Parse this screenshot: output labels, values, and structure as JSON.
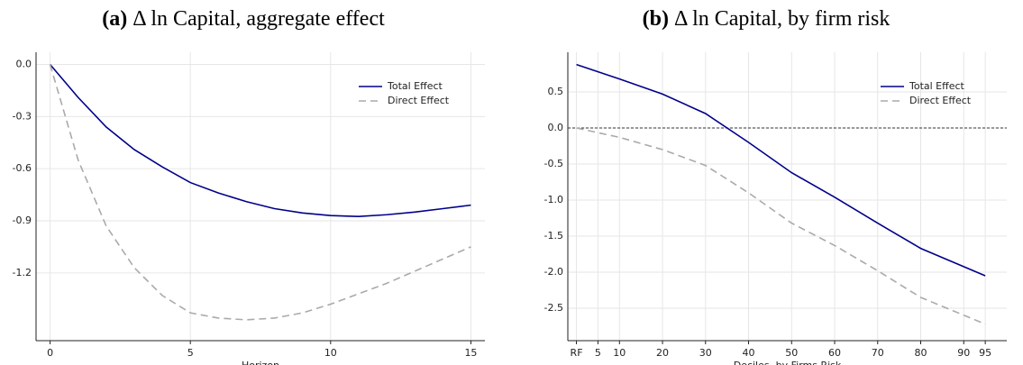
{
  "chart_data": [
    {
      "type": "line",
      "panel": "(a)",
      "title": "Δ ln Capital, aggregate effect",
      "x_label": "Horizon",
      "x": [
        0,
        1,
        2,
        3,
        4,
        5,
        6,
        7,
        8,
        9,
        10,
        11,
        12,
        13,
        14,
        15
      ],
      "series": [
        {
          "name": "Total Effect",
          "color": "#00008b",
          "dash": false,
          "values": [
            0,
            -0.19,
            -0.36,
            -0.49,
            -0.59,
            -0.68,
            -0.74,
            -0.79,
            -0.83,
            -0.855,
            -0.87,
            -0.875,
            -0.865,
            -0.85,
            -0.83,
            -0.81
          ]
        },
        {
          "name": "Direct Effect",
          "color": "#aaaaaa",
          "dash": true,
          "values": [
            0,
            -0.55,
            -0.93,
            -1.17,
            -1.33,
            -1.43,
            -1.46,
            -1.47,
            -1.46,
            -1.43,
            -1.38,
            -1.32,
            -1.26,
            -1.19,
            -1.12,
            -1.05
          ]
        }
      ],
      "xlim": [
        -0.5,
        15.5
      ],
      "xticks": [
        0,
        5,
        10,
        15
      ],
      "ylim": [
        -1.59,
        0.07
      ],
      "yticks": [
        {
          "value": 0,
          "label": "0.0"
        },
        -0.3,
        -0.6,
        -0.9,
        -1.2
      ],
      "grid": true,
      "zero_line": false,
      "legend": "upper right"
    },
    {
      "type": "line",
      "panel": "(b)",
      "title": "Δ ln Capital, by firm risk",
      "x_label": "Deciles, by Firms Risk",
      "x": [
        0,
        10,
        20,
        30,
        40,
        50,
        60,
        70,
        80,
        95
      ],
      "series": [
        {
          "name": "Total Effect",
          "color": "#00008b",
          "dash": false,
          "values": [
            0.88,
            0.68,
            0.47,
            0.2,
            -0.2,
            -0.62,
            -0.96,
            -1.32,
            -1.67,
            -2.05
          ]
        },
        {
          "name": "Direct Effect",
          "color": "#aaaaaa",
          "dash": true,
          "values": [
            0,
            -0.13,
            -0.3,
            -0.52,
            -0.9,
            -1.32,
            -1.63,
            -1.98,
            -2.35,
            -2.72
          ]
        }
      ],
      "xlim": [
        -2,
        100
      ],
      "xticks": [
        {
          "value": 0,
          "label": "RF"
        },
        5,
        10,
        20,
        30,
        40,
        50,
        60,
        70,
        80,
        90,
        95
      ],
      "ylim": [
        -2.95,
        1.05
      ],
      "yticks": [
        0.5,
        {
          "value": 0,
          "label": "0.0"
        },
        -0.5,
        {
          "value": -1,
          "label": "-1.0"
        },
        -1.5,
        {
          "value": -2,
          "label": "-2.0"
        },
        -2.5
      ],
      "grid": true,
      "zero_line": true,
      "legend": "upper right"
    }
  ]
}
